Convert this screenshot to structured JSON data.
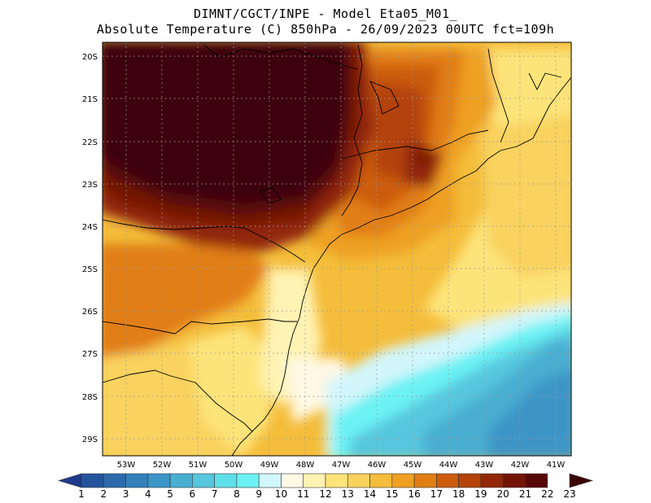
{
  "header": {
    "line1": "DIMNT/CGCT/INPE -  Model Eta05_M01_",
    "line2": "Absolute Temperature (C) 850hPa -  26/09/2023 00UTC fct=109h"
  },
  "map": {
    "lat_labels": [
      "20S",
      "21S",
      "22S",
      "23S",
      "24S",
      "25S",
      "26S",
      "27S",
      "28S",
      "29S"
    ],
    "lon_labels": [
      "53W",
      "52W",
      "51W",
      "50W",
      "49W",
      "48W",
      "47W",
      "46W",
      "45W",
      "44W",
      "43W",
      "42W",
      "41W"
    ],
    "gridlines": "dotted",
    "region": "Southern / Southeastern Brazil"
  },
  "colorbar": {
    "labels": [
      "1",
      "2",
      "3",
      "4",
      "5",
      "6",
      "7",
      "8",
      "9",
      "10",
      "11",
      "12",
      "13",
      "14",
      "15",
      "16",
      "17",
      "18",
      "19",
      "20",
      "21",
      "22",
      "23"
    ],
    "colors": [
      "#1f3a8c",
      "#24549c",
      "#2c6aab",
      "#3380ba",
      "#3c95c6",
      "#48aed2",
      "#56c7de",
      "#5fdfe8",
      "#6cf2f4",
      "#d2f6fb",
      "#fff8e4",
      "#fff3b3",
      "#fde47a",
      "#f9d25e",
      "#f4bd3b",
      "#eea022",
      "#e17e13",
      "#cc5c0e",
      "#b4420b",
      "#922807",
      "#741406",
      "#560808",
      "#3d0408"
    ]
  }
}
